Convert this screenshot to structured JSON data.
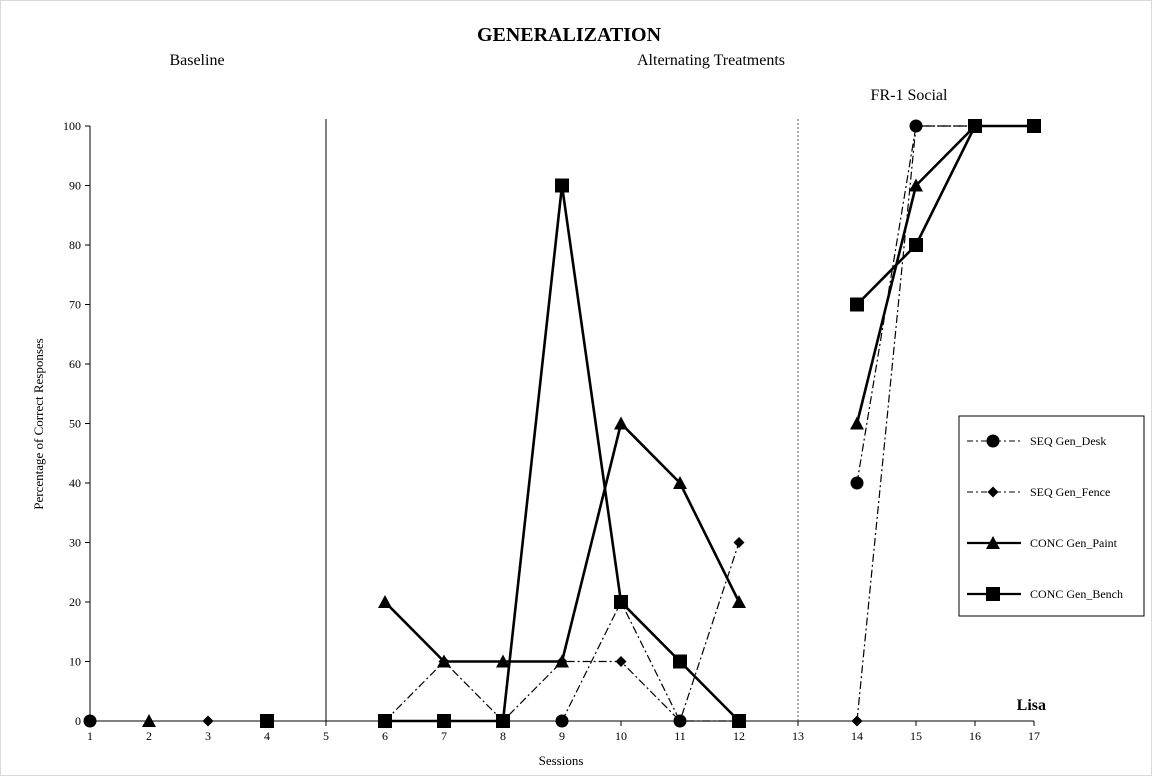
{
  "chart_data": {
    "type": "line",
    "title": "GENERALIZATION",
    "xlabel": "Sessions",
    "ylabel": "Percentage of Correct Responses",
    "xlim": [
      1,
      17
    ],
    "ylim": [
      0,
      100
    ],
    "x_ticks": [
      "1",
      "2",
      "3",
      "4",
      "5",
      "6",
      "7",
      "8",
      "9",
      "10",
      "11",
      "12",
      "13",
      "14",
      "15",
      "16",
      "17"
    ],
    "y_ticks": [
      "0",
      "10",
      "20",
      "30",
      "40",
      "50",
      "60",
      "70",
      "80",
      "90",
      "100"
    ],
    "phase_labels": [
      "Baseline",
      "Alternating Treatments",
      "FR-1 Social"
    ],
    "phase_lines": [
      {
        "x": 5,
        "style": "solid"
      },
      {
        "x": 13,
        "style": "dotted"
      }
    ],
    "participant": "Lisa",
    "legend_position": "right",
    "series": [
      {
        "name": "SEQ Gen_Desk",
        "marker": "circle",
        "line": "dashdot",
        "segments": [
          [
            [
              1,
              0
            ]
          ],
          [
            [
              9,
              0
            ],
            [
              10,
              20
            ],
            [
              11,
              0
            ],
            [
              12,
              0
            ]
          ],
          [
            [
              14,
              40
            ],
            [
              15,
              100
            ],
            [
              16,
              100
            ]
          ]
        ]
      },
      {
        "name": "SEQ Gen_Fence",
        "marker": "diamond",
        "line": "dashdot",
        "segments": [
          [
            [
              3,
              0
            ]
          ],
          [
            [
              6,
              0
            ],
            [
              7,
              10
            ],
            [
              8,
              0
            ],
            [
              9,
              10
            ],
            [
              10,
              10
            ],
            [
              11,
              0
            ],
            [
              12,
              30
            ]
          ],
          [
            [
              14,
              0
            ],
            [
              15,
              100
            ],
            [
              16,
              100
            ]
          ]
        ]
      },
      {
        "name": "CONC Gen_Paint",
        "marker": "triangle",
        "line": "solid",
        "segments": [
          [
            [
              2,
              0
            ]
          ],
          [
            [
              6,
              20
            ],
            [
              7,
              10
            ],
            [
              8,
              10
            ],
            [
              9,
              10
            ],
            [
              10,
              50
            ],
            [
              11,
              40
            ],
            [
              12,
              20
            ]
          ],
          [
            [
              14,
              50
            ],
            [
              15,
              90
            ],
            [
              16,
              100
            ]
          ]
        ]
      },
      {
        "name": "CONC Gen_Bench",
        "marker": "square",
        "line": "solid",
        "segments": [
          [
            [
              4,
              0
            ]
          ],
          [
            [
              6,
              0
            ],
            [
              7,
              0
            ],
            [
              8,
              0
            ],
            [
              9,
              90
            ],
            [
              10,
              20
            ],
            [
              11,
              10
            ],
            [
              12,
              0
            ]
          ],
          [
            [
              14,
              70
            ],
            [
              15,
              80
            ],
            [
              16,
              100
            ],
            [
              17,
              100
            ]
          ]
        ]
      }
    ]
  }
}
